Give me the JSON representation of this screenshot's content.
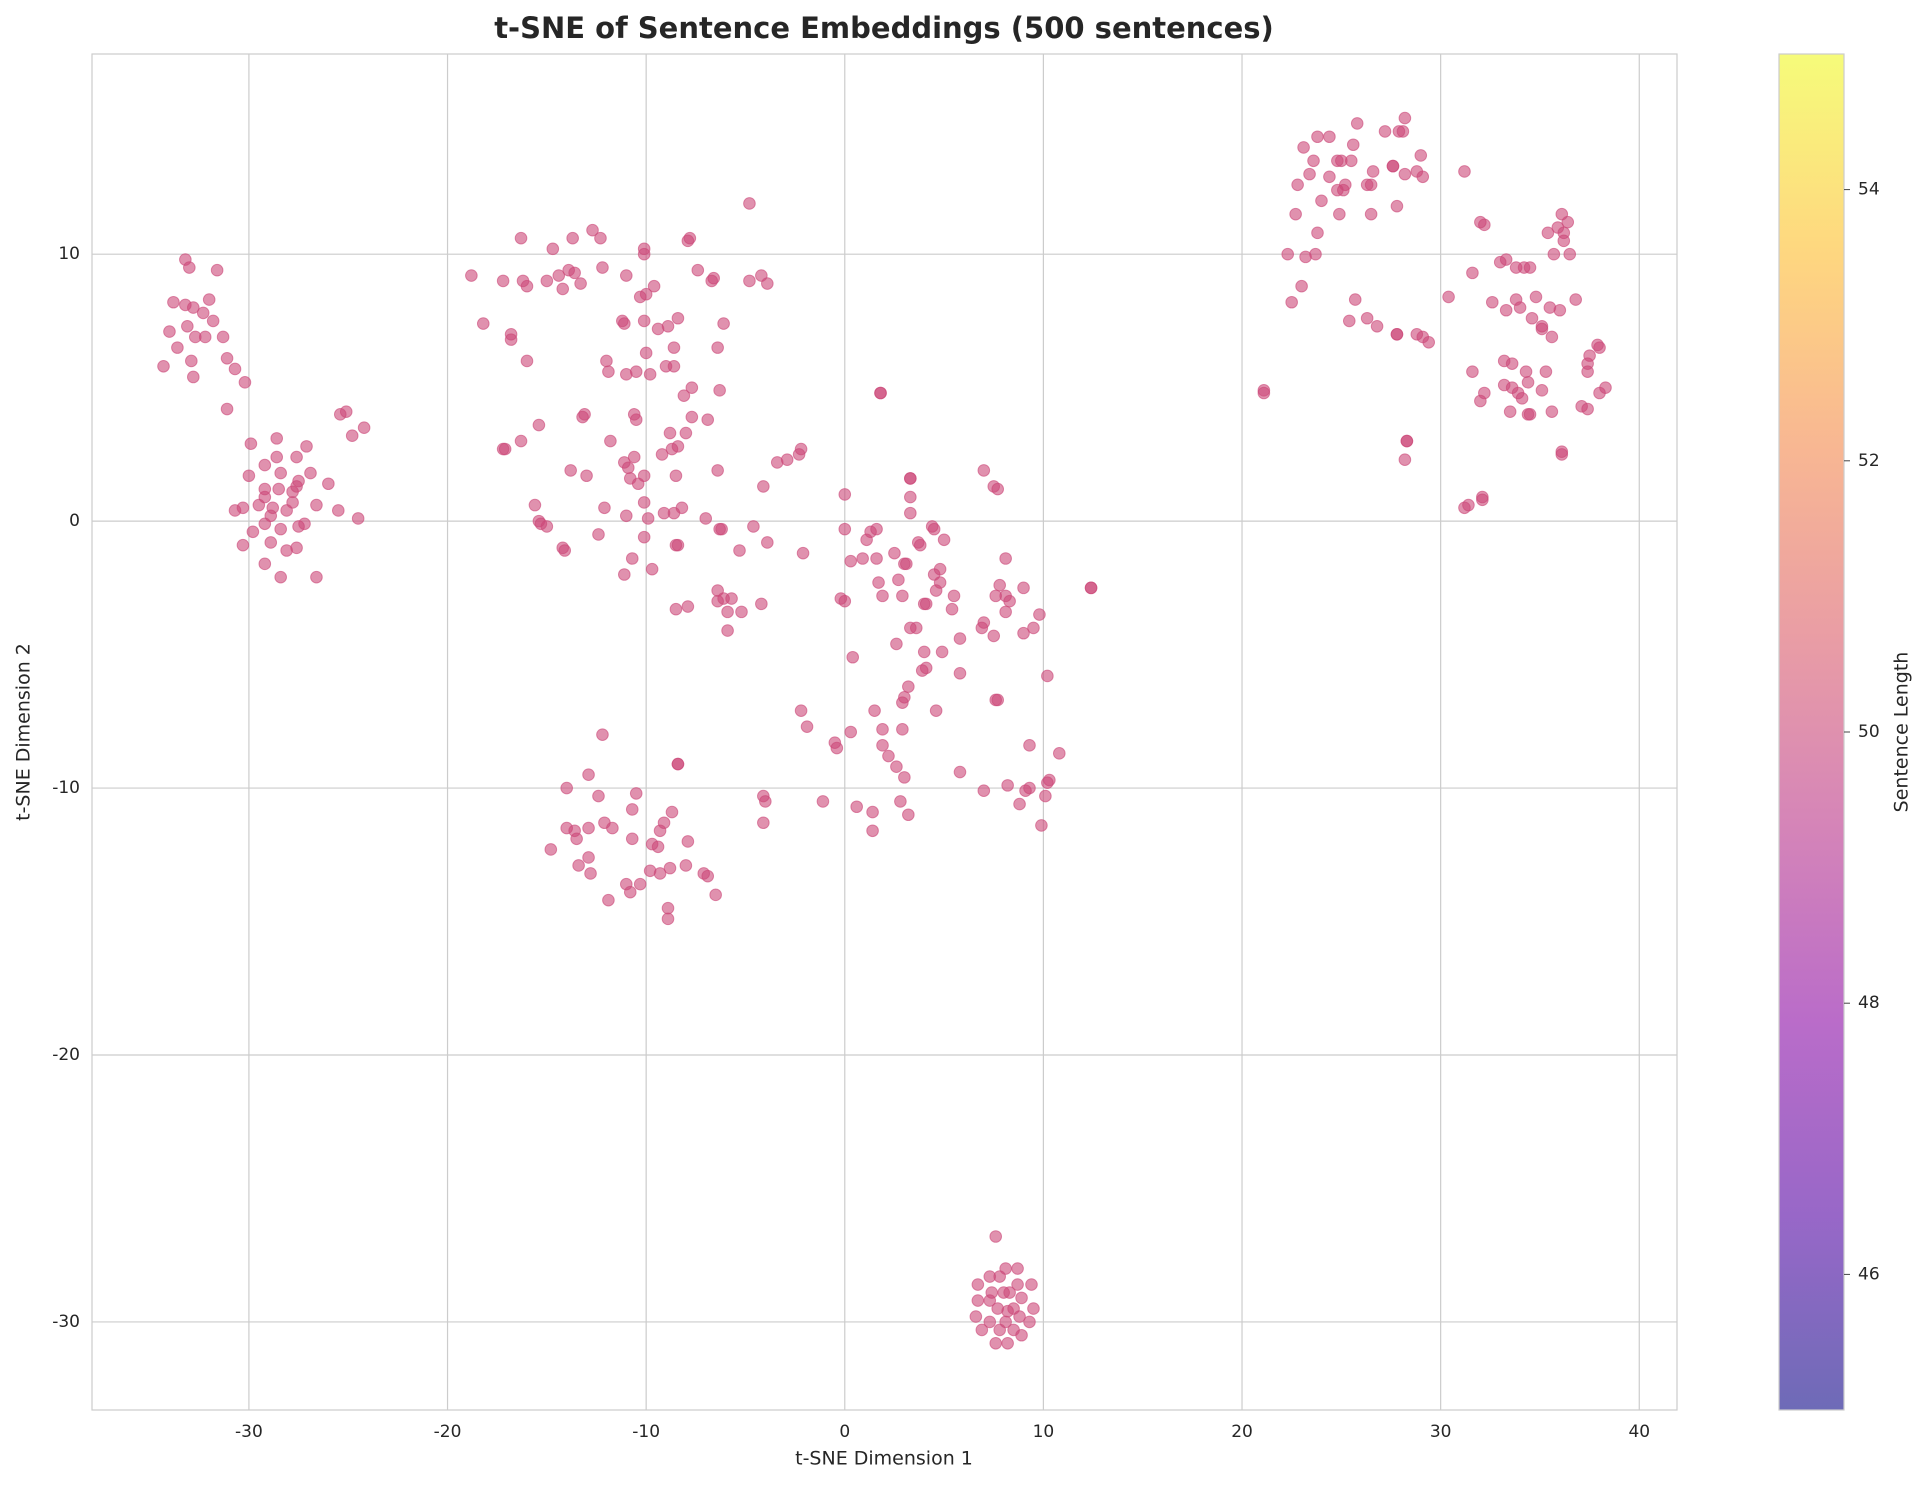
{
  "chart_data": {
    "type": "scatter",
    "title": "t-SNE of Sentence Embeddings (500 sentences)",
    "x_label": "t-SNE Dimension 1",
    "y_label": "t-SNE Dimension 2",
    "xlim": [
      -37.9,
      41.9
    ],
    "ylim": [
      -33.3,
      17.5
    ],
    "xticks": [
      -30,
      -20,
      -10,
      0,
      10,
      20,
      30,
      40
    ],
    "yticks": [
      -30,
      -20,
      -10,
      0,
      10
    ],
    "grid": true,
    "color": "#cc4778",
    "alpha": 0.6,
    "colorbar": {
      "label": "Sentence Length",
      "lim": [
        45,
        55
      ],
      "ticks": [
        46,
        48,
        50,
        52,
        54
      ],
      "colormap": "plasma"
    },
    "x": [
      -33.2,
      -33,
      -31.6,
      -33.8,
      -32.8,
      -33.2,
      -32,
      -32.3,
      -34,
      -33.1,
      -31.8,
      -32.2,
      -32.7,
      -31.3,
      -33.6,
      -34.3,
      -32.9,
      -31.1,
      -30.7,
      -32.8,
      -30.2,
      -31.1,
      -29.9,
      -28.6,
      -27.1,
      -28.6,
      -27.6,
      -29.2,
      -30,
      -28.4,
      -26.9,
      -27.5,
      -27.6,
      -29.2,
      -28.5,
      -27.8,
      -26,
      -29.2,
      -29.5,
      -27.8,
      -26.6,
      -28.8,
      -30.3,
      -30.7,
      -28.1,
      -25.5,
      -28.9,
      -27.5,
      -27.2,
      -29.2,
      -28.4,
      -29.8,
      -28.9,
      -30.3,
      -27.6,
      -28.1,
      -29.2,
      -28.4,
      -26.6,
      -25.4,
      -25.1,
      -24.2,
      -24.8,
      -24.5,
      -4.8,
      -18.8,
      -16.3,
      -14.7,
      -13.7,
      -12.7,
      -12.3,
      -10.1,
      -10.1,
      -7.8,
      -7.9,
      -17.2,
      -16.2,
      -15,
      -14.4,
      -13.9,
      -13.6,
      -12.2,
      -11,
      -9.6,
      -14.2,
      -13.3,
      -16,
      -10.3,
      -10,
      -7.4,
      -6.7,
      -6.6,
      -4.8,
      -4.2,
      -3.9,
      -18.2,
      -16.8,
      -16.8,
      -11.2,
      -11.1,
      -10.1,
      -8.4,
      -8.9,
      -9.4,
      -6.1,
      -16,
      -12,
      -10,
      -8.6,
      -6.4,
      -11.9,
      -11,
      -10.5,
      -9.8,
      -9,
      -8.6,
      -7.7,
      -8.1,
      -6.3,
      -17.2,
      -17.1,
      -15.4,
      -13.2,
      -13.1,
      -10.6,
      -10.5,
      -7.7,
      -6.9,
      -8.8,
      -8,
      -16.3,
      -11.8,
      -8.4,
      -8.7,
      -2.2,
      -2.3,
      -3.4,
      -2.9,
      -10.6,
      -9.2,
      -11.1,
      -10.9,
      -6.4,
      -13.8,
      -13,
      -8.5,
      -10.4,
      -10.8,
      -10.1,
      -4.1,
      -10.1,
      -9.1,
      -8.2,
      -8.6,
      -15.6,
      -12.1,
      -11,
      -9.9,
      -15.4,
      -15.3,
      -15,
      -7,
      -6.3,
      -6.2,
      -4.6,
      -12.4,
      -10.1,
      -3.9,
      -14.2,
      -14.1,
      -8.5,
      -8.4,
      -5.3,
      -2.1,
      -10.7,
      -11.1,
      -9.7,
      -6.4,
      -6.1,
      -5.7,
      -6.4,
      -5.9,
      -5.2,
      -4.2,
      -8.5,
      -7.9,
      -5.9,
      -12.2,
      -8.4,
      -8.4,
      -14,
      -12.9,
      -12.4,
      -10.5,
      -4.1,
      -4,
      -8.7,
      -10.7,
      -12.1,
      -14,
      -13.6,
      -11.7,
      -12.9,
      -9.1,
      -9.3,
      -4.1,
      -13.5,
      -10.7,
      -9.7,
      -9.4,
      -7.9,
      -14.8,
      -12.9,
      -13.4,
      -12.8,
      -9.8,
      -9.3,
      -8.8,
      -8,
      -7.1,
      -6.9,
      -11,
      -10.3,
      -10.8,
      -6.5,
      -11.9,
      -8.9,
      -8.9,
      1.8,
      1.8,
      3.3,
      3.3,
      7,
      7.5,
      7.7,
      3.3,
      3.3,
      0,
      4.4,
      4.5,
      0,
      1.3,
      1.1,
      1.6,
      5,
      3.8,
      3.7,
      8.1,
      0.3,
      0.9,
      1.6,
      2.5,
      3,
      3.1,
      4.8,
      4.5,
      1.7,
      2.7,
      4.8,
      7.8,
      9,
      12.4,
      12.4,
      1.9,
      2.9,
      4.6,
      5.5,
      7.6,
      8.1,
      8.3,
      0,
      -0.2,
      4,
      4.1,
      5.4,
      8.1,
      9.8,
      3.6,
      3.3,
      7,
      6.9,
      7.5,
      9.5,
      9,
      2.6,
      5.8,
      4,
      4.9,
      0.4,
      3.9,
      4.1,
      5.8,
      10.2,
      3.2,
      2.9,
      3,
      7.6,
      7.7,
      -2.2,
      1.5,
      4.6,
      -1.9,
      0.3,
      1.9,
      2.9,
      -0.5,
      -0.4,
      1.9,
      2.2,
      9.3,
      10.8,
      2.6,
      3,
      5.8,
      8.2,
      9.3,
      9.1,
      10.3,
      10.2,
      7,
      10.1,
      -1.1,
      0.6,
      2.8,
      1.4,
      3.2,
      8.8,
      9.9,
      1.4,
      7.6,
      7.3,
      7.8,
      8.1,
      8.7,
      6.7,
      8.7,
      9.4,
      7.4,
      8,
      8.3,
      6.7,
      7.3,
      8.9,
      7.7,
      8.2,
      8.5,
      9.5,
      6.6,
      7.3,
      8.1,
      8.8,
      9.3,
      6.9,
      7.8,
      8.5,
      8.9,
      7.6,
      8.2,
      28.2,
      25.8,
      24.4,
      23.8,
      27.2,
      27.9,
      28.1,
      25.6,
      23.1,
      24.8,
      25,
      23.6,
      25.5,
      27.6,
      27.6,
      29,
      31.2,
      23.4,
      26.6,
      28.2,
      28.8,
      29.1,
      22.8,
      24.4,
      25.2,
      26.3,
      26.5,
      24.8,
      25.1,
      24,
      27.8,
      22.7,
      24.9,
      26.5,
      23.2,
      22.3,
      23.7,
      23.8,
      32,
      32.2,
      36.1,
      36.4,
      35.9,
      36.2,
      35.4,
      36.2,
      35.7,
      36.5,
      33,
      33.3,
      33.8,
      34.2,
      34.5,
      31.6,
      23,
      30.4,
      32.6,
      34.8,
      36.8,
      22.5,
      25.7,
      33.8,
      33.3,
      34,
      35.5,
      36,
      34.6,
      26.3,
      25.4,
      26.8,
      35.1,
      35.1,
      27.8,
      27.8,
      28.8,
      29.1,
      29.4,
      35.6,
      38,
      37.9,
      37.5,
      37.4,
      33.2,
      33.6,
      31.6,
      34.3,
      35.3,
      37.4,
      33.2,
      33.6,
      34.4,
      33.9,
      34.1,
      32.2,
      35.1,
      38.3,
      38,
      21.1,
      21.1,
      32,
      37.1,
      37.4,
      33.5,
      34.5,
      34.4,
      35.6,
      28.3,
      28.3,
      36.1,
      36.1,
      28.2,
      32.1,
      32.1,
      31.2,
      31.4
    ],
    "values": [
      9.8,
      9.5,
      9.4,
      8.2,
      8,
      8.1,
      8.3,
      7.8,
      7.1,
      7.3,
      7.5,
      6.9,
      6.9,
      6.9,
      6.5,
      5.8,
      6,
      6.1,
      5.7,
      5.4,
      5.2,
      4.2,
      2.9,
      3.1,
      2.8,
      2.4,
      2.4,
      2.1,
      1.7,
      1.8,
      1.8,
      1.5,
      1.3,
      1.2,
      1.2,
      1.1,
      1.4,
      0.9,
      0.6,
      0.7,
      0.6,
      0.5,
      0.5,
      0.4,
      0.4,
      0.4,
      0.2,
      -0.2,
      -0.1,
      -0.1,
      -0.3,
      -0.4,
      -0.8,
      -0.9,
      -1,
      -1.1,
      -1.6,
      -2.1,
      -2.1,
      4,
      4.1,
      3.5,
      3.2,
      0.1,
      11.9,
      9.2,
      10.6,
      10.2,
      10.6,
      10.9,
      10.6,
      10.2,
      10,
      10.6,
      10.5,
      9,
      9,
      9,
      9.2,
      9.4,
      9.3,
      9.5,
      9.2,
      8.8,
      8.7,
      8.9,
      8.8,
      8.4,
      8.5,
      9.4,
      9,
      9.1,
      9,
      9.2,
      8.9,
      7.4,
      7,
      6.8,
      7.5,
      7.4,
      7.5,
      7.6,
      7.3,
      7.2,
      7.4,
      6,
      6,
      6.3,
      6.5,
      6.5,
      5.6,
      5.5,
      5.6,
      5.5,
      5.8,
      5.8,
      5,
      4.7,
      4.9,
      2.7,
      2.7,
      3.6,
      3.9,
      4,
      4,
      3.8,
      3.9,
      3.8,
      3.3,
      3.3,
      3,
      3,
      2.8,
      2.7,
      2.7,
      2.5,
      2.2,
      2.3,
      2.4,
      2.5,
      2.2,
      2,
      1.9,
      1.9,
      1.7,
      1.7,
      1.4,
      1.6,
      1.7,
      1.3,
      0.7,
      0.3,
      0.5,
      0.3,
      0.6,
      0.5,
      0.2,
      0.1,
      0,
      -0.1,
      -0.2,
      0.1,
      -0.3,
      -0.3,
      -0.2,
      -0.5,
      -0.6,
      -0.8,
      -1,
      -1.1,
      -0.9,
      -0.9,
      -1.1,
      -1.2,
      -1.4,
      -2,
      -1.8,
      -2.6,
      -2.9,
      -2.9,
      -3,
      -3.4,
      -3.4,
      -3.1,
      -3.3,
      -3.2,
      -4.1,
      -8,
      -9.1,
      -9.1,
      -10,
      -9.5,
      -10.3,
      -10.2,
      -10.3,
      -10.5,
      -10.9,
      -10.8,
      -11.3,
      -11.5,
      -11.6,
      -11.5,
      -11.5,
      -11.3,
      -11.6,
      -11.3,
      -11.9,
      -11.9,
      -12.1,
      -12.2,
      -12,
      -12.3,
      -12.6,
      -12.9,
      -13.2,
      -13.1,
      -13.2,
      -13,
      -12.9,
      -13.2,
      -13.3,
      -13.6,
      -13.6,
      -13.9,
      -14,
      -14.2,
      -14.5,
      -14.9,
      4.8,
      4.8,
      1.6,
      1.6,
      1.9,
      1.3,
      1.2,
      0.9,
      0.3,
      1,
      -0.2,
      -0.3,
      -0.3,
      -0.4,
      -0.7,
      -0.3,
      -0.7,
      -0.9,
      -0.8,
      -1.4,
      -1.5,
      -1.4,
      -1.4,
      -1.2,
      -1.6,
      -1.6,
      -1.8,
      -2,
      -2.3,
      -2.2,
      -2.3,
      -2.4,
      -2.5,
      -2.5,
      -2.5,
      -2.8,
      -2.8,
      -2.6,
      -2.8,
      -2.8,
      -2.8,
      -3,
      -3,
      -2.9,
      -3.1,
      -3.1,
      -3.3,
      -3.4,
      -3.5,
      -4,
      -4,
      -3.8,
      -4,
      -4.3,
      -4,
      -4.2,
      -4.6,
      -4.4,
      -4.9,
      -4.9,
      -5.1,
      -5.6,
      -5.5,
      -5.7,
      -5.8,
      -6.2,
      -6.8,
      -6.6,
      -6.7,
      -6.7,
      -7.1,
      -7.1,
      -7.1,
      -7.7,
      -7.9,
      -7.8,
      -7.8,
      -8.3,
      -8.5,
      -8.4,
      -8.8,
      -8.4,
      -8.7,
      -9.2,
      -9.6,
      -9.4,
      -9.9,
      -10,
      -10.1,
      -9.7,
      -9.8,
      -10.1,
      -10.3,
      -10.5,
      -10.7,
      -10.5,
      -10.9,
      -11,
      -10.6,
      -11.4,
      -11.6,
      -26.8,
      -28.3,
      -28.3,
      -28,
      -28,
      -28.6,
      -28.6,
      -28.6,
      -28.9,
      -28.9,
      -28.9,
      -29.2,
      -29.2,
      -29.1,
      -29.5,
      -29.6,
      -29.5,
      -29.5,
      -29.8,
      -30,
      -30,
      -29.8,
      -30,
      -30.3,
      -30.3,
      -30.3,
      -30.5,
      -30.8,
      -30.8,
      15.1,
      14.9,
      14.4,
      14.4,
      14.6,
      14.6,
      14.6,
      14.1,
      14,
      13.5,
      13.5,
      13.5,
      13.5,
      13.3,
      13.3,
      13.7,
      13.1,
      13,
      13.1,
      13,
      13.1,
      12.9,
      12.6,
      12.9,
      12.6,
      12.6,
      12.6,
      12.4,
      12.4,
      12,
      11.8,
      11.5,
      11.5,
      11.5,
      9.9,
      10,
      10,
      10.8,
      11.2,
      11.1,
      11.5,
      11.2,
      11,
      10.8,
      10.8,
      10.5,
      10,
      10,
      9.7,
      9.8,
      9.5,
      9.5,
      9.5,
      9.3,
      8.8,
      8.4,
      8.2,
      8.4,
      8.3,
      8.2,
      8.3,
      8.3,
      7.9,
      8,
      8,
      7.9,
      7.6,
      7.6,
      7.5,
      7.3,
      7.3,
      7.2,
      7,
      7,
      7,
      6.9,
      6.7,
      6.9,
      6.5,
      6.6,
      6.2,
      5.9,
      6,
      5.9,
      5.6,
      5.6,
      5.6,
      5.6,
      5.1,
      5,
      5.2,
      4.8,
      4.6,
      4.8,
      4.9,
      5,
      4.8,
      4.9,
      4.8,
      4.5,
      4.3,
      4.2,
      4.1,
      4,
      4,
      4.1,
      3,
      3,
      2.6,
      2.5,
      2.3,
      0.9,
      0.8,
      0.5,
      0.6
    ]
  }
}
